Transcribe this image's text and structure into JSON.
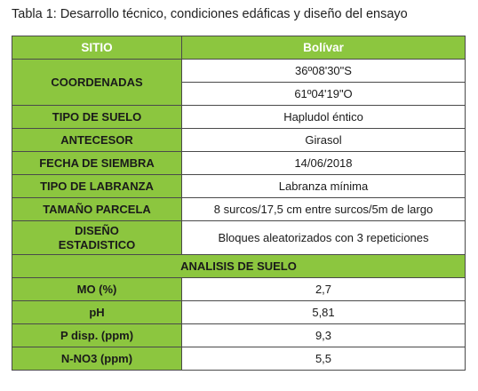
{
  "caption": "Tabla 1: Desarrollo técnico, condiciones edáficas y diseño del ensayo",
  "header": {
    "col1": "SITIO",
    "col2": "Bolívar"
  },
  "coordinates": {
    "label": "COORDENADAS",
    "lat": "36º08'30\"S",
    "lon": "61º04'19\"O"
  },
  "rows_top": [
    {
      "label": "TIPO DE SUELO",
      "value": "Hapludol éntico"
    },
    {
      "label": "ANTECESOR",
      "value": "Girasol"
    },
    {
      "label": "FECHA DE SIEMBRA",
      "value": "14/06/2018"
    },
    {
      "label": "TIPO DE LABRANZA",
      "value": "Labranza mínima"
    },
    {
      "label": "TAMAÑO PARCELA",
      "value": "8 surcos/17,5 cm entre surcos/5m de largo"
    }
  ],
  "design": {
    "label_line1": "DISEÑO",
    "label_line2": "ESTADISTICO",
    "value": "Bloques aleatorizados con 3 repeticiones"
  },
  "section": "ANALISIS DE SUELO",
  "rows_soil": [
    {
      "label": "MO (%)",
      "value": "2,7"
    },
    {
      "label": "pH",
      "value": "5,81"
    },
    {
      "label": "P disp. (ppm)",
      "value": "9,3"
    },
    {
      "label": "N-NO3 (ppm)",
      "value": "5,5"
    }
  ],
  "colors": {
    "accent": "#8cc63f",
    "border": "#4a4a4a"
  }
}
